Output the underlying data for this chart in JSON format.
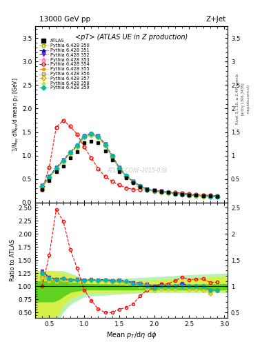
{
  "title_top": "13000 GeV pp",
  "title_right": "Z+Jet",
  "main_title": "<pT> (ATLAS UE in Z production)",
  "xlabel": "Mean $p_T$/d$\\eta$ d$\\phi$",
  "ylabel_main": "1/N$_{ev}$ dN$_{ev}$/d mean p$_T$ [GeV]",
  "ylabel_ratio": "Ratio to ATLAS",
  "watermark": "ATLAS-CONF-2015-038",
  "rivet_label": "Rivet 3.1.10, ≥ 2.4M events",
  "arxiv_label": "[arXiv:1306.3436]",
  "mcplots_label": "mcplots.cern.ch",
  "ylim_main": [
    0.0,
    3.75
  ],
  "ylim_ratio": [
    0.4,
    2.6
  ],
  "xlim": [
    0.3,
    3.05
  ],
  "x_atlas": [
    0.4,
    0.5,
    0.6,
    0.7,
    0.8,
    0.9,
    1.0,
    1.1,
    1.2,
    1.3,
    1.4,
    1.5,
    1.6,
    1.7,
    1.8,
    1.9,
    2.0,
    2.1,
    2.2,
    2.3,
    2.4,
    2.5,
    2.6,
    2.7,
    2.8,
    2.9
  ],
  "y_atlas": [
    0.28,
    0.47,
    0.65,
    0.78,
    0.95,
    1.08,
    1.27,
    1.3,
    1.27,
    1.1,
    0.9,
    0.66,
    0.52,
    0.42,
    0.33,
    0.28,
    0.26,
    0.23,
    0.21,
    0.19,
    0.17,
    0.16,
    0.15,
    0.14,
    0.14,
    0.13
  ],
  "atlas_yerr": [
    0.015,
    0.018,
    0.02,
    0.022,
    0.025,
    0.028,
    0.03,
    0.03,
    0.028,
    0.025,
    0.022,
    0.018,
    0.015,
    0.013,
    0.012,
    0.011,
    0.01,
    0.009,
    0.009,
    0.008,
    0.008,
    0.007,
    0.007,
    0.006,
    0.006,
    0.006
  ],
  "series": [
    {
      "label": "Pythia 6.428 350",
      "color": "#aaaa00",
      "marker": "s",
      "fillstyle": "none",
      "linestyle": "--",
      "y": [
        0.32,
        0.52,
        0.72,
        0.88,
        1.05,
        1.2,
        1.4,
        1.45,
        1.4,
        1.22,
        0.98,
        0.72,
        0.56,
        0.44,
        0.34,
        0.28,
        0.25,
        0.23,
        0.21,
        0.19,
        0.17,
        0.16,
        0.15,
        0.14,
        0.13,
        0.12
      ]
    },
    {
      "label": "Pythia 6.428 351",
      "color": "#0000ee",
      "marker": "^",
      "fillstyle": "full",
      "linestyle": "--",
      "y": [
        0.36,
        0.55,
        0.74,
        0.9,
        1.07,
        1.22,
        1.42,
        1.47,
        1.42,
        1.24,
        1.0,
        0.74,
        0.57,
        0.45,
        0.35,
        0.29,
        0.26,
        0.24,
        0.21,
        0.19,
        0.18,
        0.16,
        0.15,
        0.14,
        0.13,
        0.12
      ]
    },
    {
      "label": "Pythia 6.428 352",
      "color": "#7722cc",
      "marker": "v",
      "fillstyle": "full",
      "linestyle": "--",
      "y": [
        0.36,
        0.55,
        0.74,
        0.9,
        1.07,
        1.22,
        1.42,
        1.47,
        1.42,
        1.24,
        1.0,
        0.74,
        0.57,
        0.45,
        0.35,
        0.29,
        0.26,
        0.24,
        0.21,
        0.19,
        0.18,
        0.16,
        0.15,
        0.14,
        0.13,
        0.12
      ]
    },
    {
      "label": "Pythia 6.428 353",
      "color": "#ff66aa",
      "marker": "^",
      "fillstyle": "none",
      "linestyle": ":",
      "y": [
        0.35,
        0.54,
        0.73,
        0.89,
        1.06,
        1.21,
        1.41,
        1.46,
        1.41,
        1.23,
        0.99,
        0.73,
        0.57,
        0.44,
        0.35,
        0.29,
        0.25,
        0.23,
        0.21,
        0.19,
        0.17,
        0.16,
        0.15,
        0.14,
        0.13,
        0.12
      ]
    },
    {
      "label": "Pythia 6.428 354",
      "color": "#ff0000",
      "marker": "o",
      "fillstyle": "none",
      "linestyle": "--",
      "y": [
        0.28,
        0.75,
        1.6,
        1.75,
        1.62,
        1.45,
        1.18,
        0.95,
        0.72,
        0.55,
        0.45,
        0.37,
        0.31,
        0.28,
        0.27,
        0.26,
        0.25,
        0.24,
        0.22,
        0.21,
        0.2,
        0.18,
        0.17,
        0.16,
        0.15,
        0.14
      ]
    },
    {
      "label": "Pythia 6.428 355",
      "color": "#ff8800",
      "marker": "*",
      "fillstyle": "full",
      "linestyle": "--",
      "y": [
        0.34,
        0.53,
        0.72,
        0.88,
        1.05,
        1.2,
        1.4,
        1.45,
        1.4,
        1.22,
        0.98,
        0.72,
        0.56,
        0.44,
        0.34,
        0.28,
        0.25,
        0.23,
        0.21,
        0.19,
        0.17,
        0.16,
        0.15,
        0.14,
        0.13,
        0.12
      ]
    },
    {
      "label": "Pythia 6.428 356",
      "color": "#88aa00",
      "marker": "s",
      "fillstyle": "none",
      "linestyle": ":",
      "y": [
        0.34,
        0.53,
        0.72,
        0.88,
        1.05,
        1.2,
        1.4,
        1.45,
        1.4,
        1.22,
        0.98,
        0.72,
        0.56,
        0.44,
        0.34,
        0.28,
        0.25,
        0.23,
        0.21,
        0.19,
        0.17,
        0.16,
        0.15,
        0.14,
        0.13,
        0.12
      ]
    },
    {
      "label": "Pythia 6.428 357",
      "color": "#ccaa00",
      "marker": "D",
      "fillstyle": "none",
      "linestyle": "-.",
      "y": [
        0.33,
        0.52,
        0.71,
        0.87,
        1.04,
        1.19,
        1.39,
        1.44,
        1.39,
        1.21,
        0.97,
        0.71,
        0.55,
        0.43,
        0.33,
        0.27,
        0.24,
        0.22,
        0.2,
        0.18,
        0.17,
        0.15,
        0.14,
        0.13,
        0.12,
        0.12
      ]
    },
    {
      "label": "Pythia 6.428 358",
      "color": "#ccdd44",
      "marker": "^",
      "fillstyle": "full",
      "linestyle": ":",
      "y": [
        0.33,
        0.52,
        0.71,
        0.87,
        1.04,
        1.19,
        1.39,
        1.44,
        1.39,
        1.21,
        0.97,
        0.71,
        0.55,
        0.43,
        0.33,
        0.27,
        0.24,
        0.22,
        0.2,
        0.18,
        0.17,
        0.15,
        0.14,
        0.13,
        0.12,
        0.12
      ]
    },
    {
      "label": "Pythia 6.428 359",
      "color": "#00bbaa",
      "marker": "D",
      "fillstyle": "full",
      "linestyle": "--",
      "y": [
        0.35,
        0.54,
        0.73,
        0.89,
        1.06,
        1.21,
        1.41,
        1.46,
        1.41,
        1.23,
        0.99,
        0.73,
        0.57,
        0.44,
        0.34,
        0.28,
        0.25,
        0.23,
        0.21,
        0.19,
        0.17,
        0.16,
        0.15,
        0.14,
        0.13,
        0.12
      ]
    }
  ],
  "band_x": [
    0.3,
    0.55,
    0.6,
    0.65,
    0.7,
    0.8,
    1.0,
    1.5,
    2.0,
    2.5,
    3.05
  ],
  "green_outer_lo": [
    0.3,
    0.3,
    0.35,
    0.4,
    0.5,
    0.65,
    0.8,
    0.85,
    0.88,
    0.88,
    0.88
  ],
  "green_outer_hi": [
    1.3,
    1.3,
    1.3,
    1.3,
    1.3,
    1.25,
    1.15,
    1.15,
    1.18,
    1.22,
    1.25
  ],
  "yellow_lo": [
    0.3,
    0.3,
    0.4,
    0.5,
    0.62,
    0.75,
    0.88,
    0.88,
    0.9,
    0.9,
    0.9
  ],
  "yellow_hi": [
    1.3,
    1.3,
    1.28,
    1.27,
    1.25,
    1.22,
    1.12,
    1.1,
    1.12,
    1.15,
    1.2
  ],
  "green_inner_lo": [
    0.7,
    0.7,
    0.72,
    0.75,
    0.8,
    0.88,
    0.93,
    0.93,
    0.93,
    0.93,
    0.93
  ],
  "green_inner_hi": [
    1.1,
    1.1,
    1.1,
    1.1,
    1.1,
    1.08,
    1.05,
    1.04,
    1.04,
    1.04,
    1.05
  ]
}
